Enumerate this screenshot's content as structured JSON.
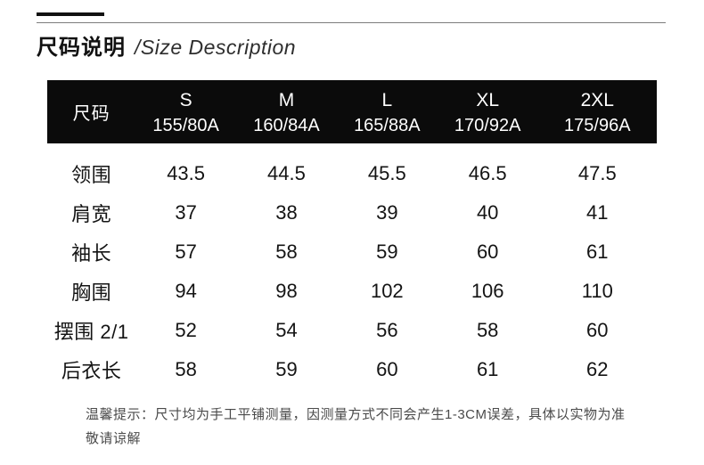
{
  "header": {
    "title_zh": "尺码说明",
    "title_en": "/Size Description"
  },
  "table": {
    "corner_label": "尺码",
    "columns": [
      {
        "size": "S",
        "spec": "155/80A"
      },
      {
        "size": "M",
        "spec": "160/84A"
      },
      {
        "size": "L",
        "spec": "165/88A"
      },
      {
        "size": "XL",
        "spec": "170/92A"
      },
      {
        "size": "2XL",
        "spec": "175/96A"
      }
    ],
    "rows": [
      {
        "label": "领围",
        "values": [
          "43.5",
          "44.5",
          "45.5",
          "46.5",
          "47.5"
        ]
      },
      {
        "label": "肩宽",
        "values": [
          "37",
          "38",
          "39",
          "40",
          "41"
        ]
      },
      {
        "label": "袖长",
        "values": [
          "57",
          "58",
          "59",
          "60",
          "61"
        ]
      },
      {
        "label": "胸围",
        "values": [
          "94",
          "98",
          "102",
          "106",
          "110"
        ]
      },
      {
        "label": "摆围 2/1",
        "values": [
          "52",
          "54",
          "56",
          "58",
          "60"
        ]
      },
      {
        "label": "后衣长",
        "values": [
          "58",
          "59",
          "60",
          "61",
          "62"
        ]
      }
    ]
  },
  "note": {
    "line1": "温馨提示：尺寸均为手工平铺测量，因测量方式不同会产生1-3CM误差，具体以实物为准",
    "line2": "敬请谅解"
  },
  "colors": {
    "header_bg": "#0b0b0b",
    "header_text": "#ffffff",
    "body_text": "#141414",
    "note_text": "#4a4a4a",
    "accent_bar": "#111111",
    "divider": "#7d7d7d"
  }
}
